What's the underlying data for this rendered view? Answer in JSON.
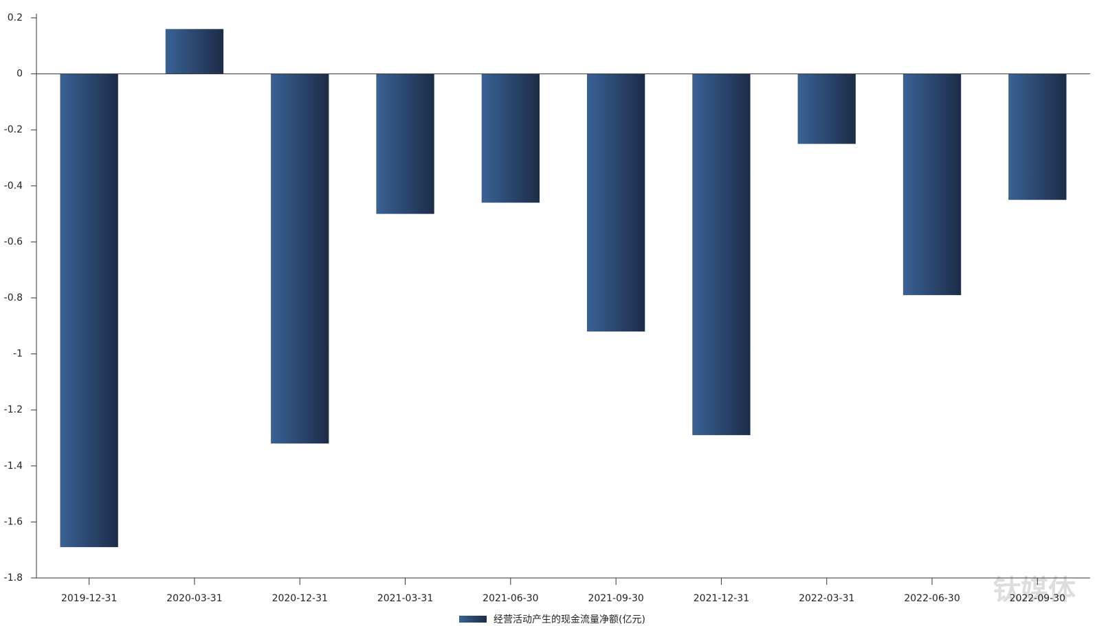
{
  "chart_data": {
    "type": "bar",
    "categories": [
      "2019-12-31",
      "2020-03-31",
      "2020-12-31",
      "2021-03-31",
      "2021-06-30",
      "2021-09-30",
      "2021-12-31",
      "2022-03-31",
      "2022-06-30",
      "2022-09-30"
    ],
    "series": [
      {
        "name": "经营活动产生的现金流量净额(亿元)",
        "color": "#2c4a75",
        "values": [
          -1.69,
          0.16,
          -1.32,
          -0.5,
          -0.46,
          -0.92,
          -1.29,
          -0.25,
          -0.79,
          -0.45
        ]
      }
    ],
    "ylim": [
      -1.8,
      0.2
    ],
    "yticks": [
      0.2,
      0,
      -0.2,
      -0.4,
      -0.6,
      -0.8,
      -1,
      -1.2,
      -1.4,
      -1.6,
      -1.8
    ],
    "legend": "bottom",
    "watermark": "钛媒体"
  }
}
